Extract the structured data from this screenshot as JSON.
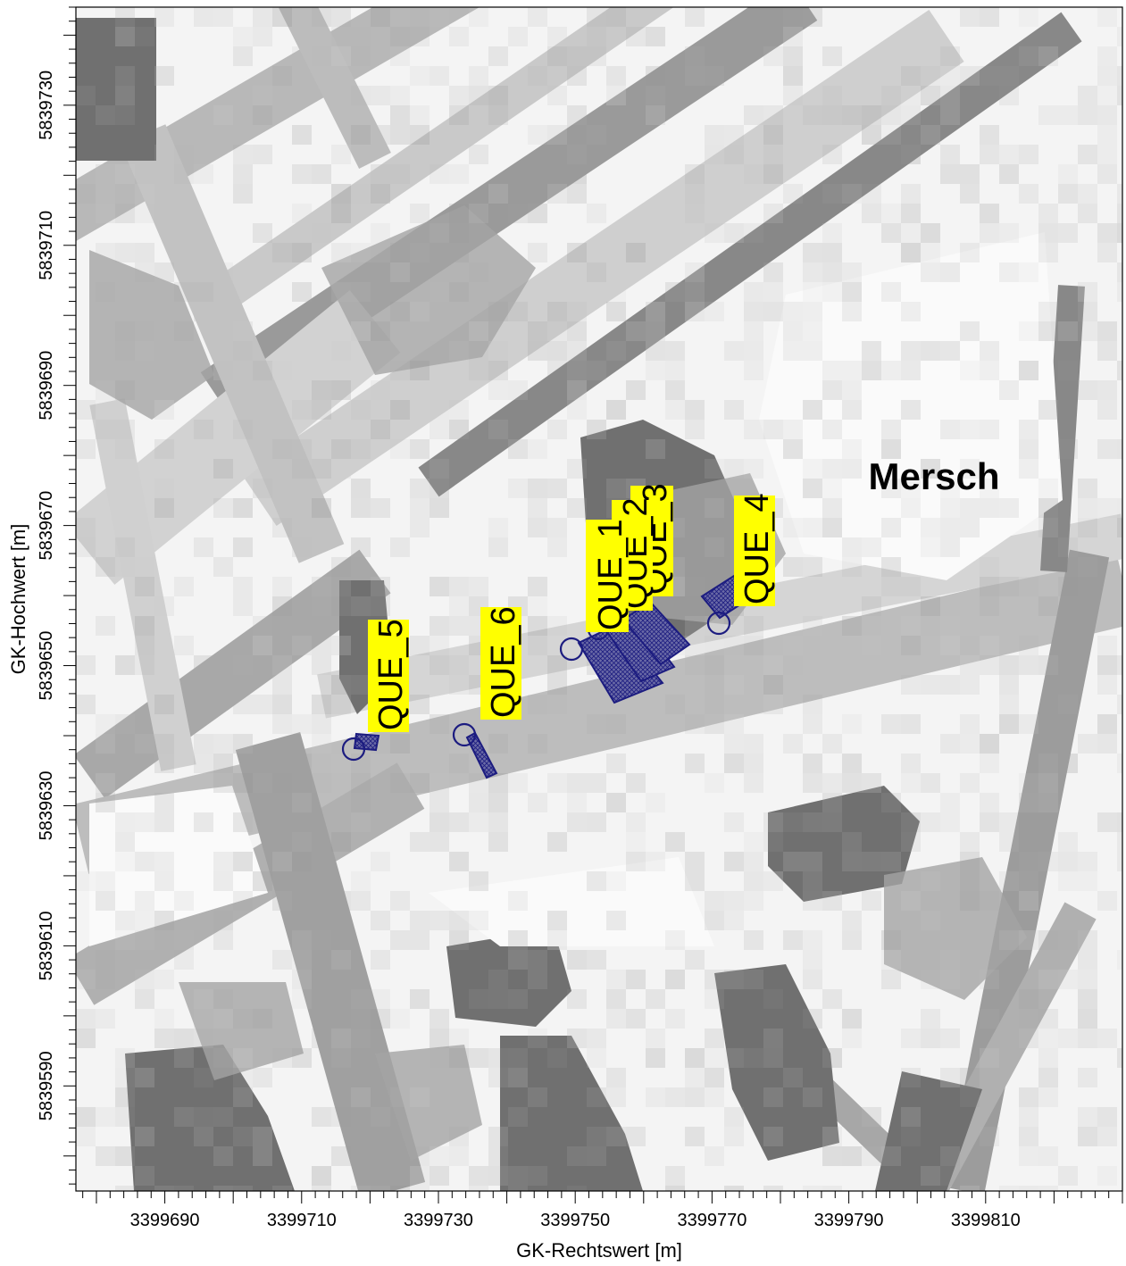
{
  "map": {
    "x_axis_title": "GK-Rechtswert [m]",
    "y_axis_title": "GK-Hochwert [m]",
    "x_range": [
      3399677,
      3399830
    ],
    "y_range": [
      5839575,
      5839744
    ],
    "x_ticks": [
      3399690,
      3399710,
      3399730,
      3399750,
      3399770,
      3399790,
      3399810
    ],
    "x_tick_labels": [
      "3399690",
      "3399710",
      "3399730",
      "3399750",
      "3399770",
      "3399790",
      "3399810"
    ],
    "y_ticks": [
      5839590,
      5839610,
      5839630,
      5839650,
      5839670,
      5839690,
      5839710,
      5839730
    ],
    "y_tick_labels": [
      "5839590",
      "5839610",
      "5839630",
      "5839650",
      "5839670",
      "5839690",
      "5839710",
      "5839730"
    ],
    "place_label": "Mersch",
    "colors": {
      "source_outline": "#1c1c80",
      "source_fill": "#5a5a9a",
      "label_highlight": "#ffff00",
      "background_light": "#f4f4f4",
      "background_dark": "#6e6e6e"
    },
    "sources": [
      {
        "id": "QUE_1",
        "label": "QUE_1"
      },
      {
        "id": "QUE_2",
        "label": "QUE_2"
      },
      {
        "id": "QUE_3",
        "label": "QUE_3"
      },
      {
        "id": "QUE_4",
        "label": "QUE_4"
      },
      {
        "id": "QUE_5",
        "label": "QUE_5"
      },
      {
        "id": "QUE_6",
        "label": "QUE_6"
      }
    ]
  }
}
